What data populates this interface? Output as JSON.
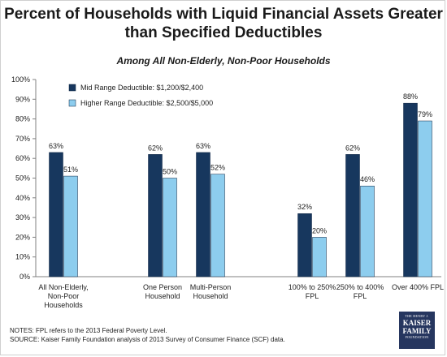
{
  "chart_data": {
    "type": "bar",
    "title": "Percent of Households with Liquid Financial Assets Greater than Specified Deductibles",
    "subtitle": "Among All Non-Elderly, Non-Poor Households",
    "categories": [
      [
        "All Non-Elderly,",
        "Non-Poor",
        "Households"
      ],
      [
        "One Person",
        "Household"
      ],
      [
        "Multi-Person",
        "Household"
      ],
      [
        "100% to 250%",
        "FPL"
      ],
      [
        "250% to 400%",
        "FPL"
      ],
      [
        "Over 400% FPL"
      ]
    ],
    "series": [
      {
        "name": "Mid Range Deductible: $1,200/$2,400",
        "values": [
          63,
          62,
          63,
          32,
          62,
          88
        ],
        "color": "#17375e"
      },
      {
        "name": "Higher Range Deductible: $2,500/$5,000",
        "values": [
          51,
          50,
          52,
          20,
          46,
          79
        ],
        "color": "#8dcdee"
      }
    ],
    "value_suffix": "%",
    "ylim": [
      0,
      100
    ],
    "yticks": [
      "0%",
      "10%",
      "20%",
      "30%",
      "40%",
      "50%",
      "60%",
      "70%",
      "80%",
      "90%",
      "100%"
    ],
    "grid": false,
    "legend_position": "top-left"
  },
  "notes": {
    "line1": "NOTES: FPL refers to the 2013 Federal Poverty Level.",
    "line2": "SOURCE: Kaiser Family Foundation analysis of 2013 Survey of Consumer Finance (SCF) data."
  },
  "logo": {
    "line1": "THE HENRY J.",
    "line2": "KAISER",
    "line3": "FAMILY",
    "line4": "FOUNDATION"
  }
}
